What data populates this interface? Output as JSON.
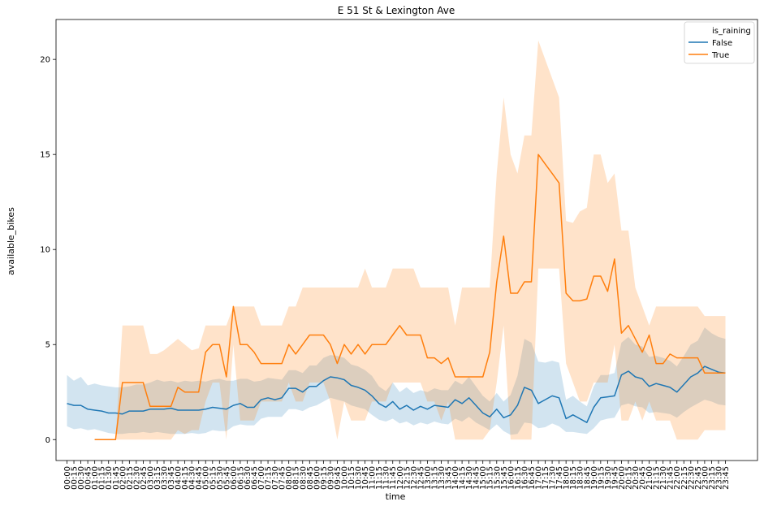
{
  "chart_data": {
    "type": "line",
    "title": "E 51 St & Lexington Ave",
    "xlabel": "time",
    "ylabel": "available_bikes",
    "ylim": [
      -1.1,
      22.1
    ],
    "yticks": [
      0,
      5,
      10,
      15,
      20
    ],
    "legend": {
      "title": "is_raining",
      "placement": "top-right"
    },
    "x": [
      "00:00",
      "00:15",
      "00:30",
      "00:45",
      "01:00",
      "01:15",
      "01:30",
      "01:45",
      "02:00",
      "02:15",
      "02:30",
      "02:45",
      "03:00",
      "03:15",
      "03:30",
      "03:45",
      "04:00",
      "04:15",
      "04:30",
      "04:45",
      "05:00",
      "05:15",
      "05:30",
      "05:45",
      "06:00",
      "06:15",
      "06:30",
      "06:45",
      "07:00",
      "07:15",
      "07:30",
      "07:45",
      "08:00",
      "08:15",
      "08:30",
      "08:45",
      "09:00",
      "09:15",
      "09:30",
      "09:45",
      "10:00",
      "10:15",
      "10:30",
      "10:45",
      "11:00",
      "11:15",
      "11:30",
      "11:45",
      "12:00",
      "12:15",
      "12:30",
      "12:45",
      "13:00",
      "13:15",
      "13:30",
      "13:45",
      "14:00",
      "14:15",
      "14:30",
      "14:45",
      "15:00",
      "15:15",
      "15:30",
      "15:45",
      "16:00",
      "16:15",
      "16:30",
      "16:45",
      "17:00",
      "17:15",
      "17:30",
      "17:45",
      "18:00",
      "18:15",
      "18:30",
      "18:45",
      "19:00",
      "19:15",
      "19:30",
      "19:45",
      "20:00",
      "20:15",
      "20:30",
      "20:45",
      "21:00",
      "21:15",
      "21:30",
      "21:45",
      "22:00",
      "22:15",
      "22:30",
      "22:45",
      "23:00",
      "23:15",
      "23:30",
      "23:45"
    ],
    "series": [
      {
        "name": "False",
        "color": "#1f77b4",
        "band_color": "#1f77b4",
        "values": [
          1.9,
          1.8,
          1.8,
          1.6,
          1.55,
          1.5,
          1.4,
          1.4,
          1.35,
          1.5,
          1.5,
          1.5,
          1.6,
          1.6,
          1.6,
          1.65,
          1.55,
          1.55,
          1.55,
          1.55,
          1.6,
          1.7,
          1.65,
          1.6,
          1.8,
          1.9,
          1.7,
          1.7,
          2.1,
          2.2,
          2.1,
          2.2,
          2.7,
          2.7,
          2.5,
          2.8,
          2.8,
          3.1,
          3.3,
          3.25,
          3.15,
          2.85,
          2.75,
          2.6,
          2.3,
          1.9,
          1.7,
          2.0,
          1.6,
          1.8,
          1.55,
          1.75,
          1.6,
          1.8,
          1.75,
          1.7,
          2.1,
          1.9,
          2.2,
          1.8,
          1.4,
          1.2,
          1.6,
          1.15,
          1.3,
          1.8,
          2.75,
          2.6,
          1.9,
          2.1,
          2.3,
          2.2,
          1.1,
          1.3,
          1.1,
          0.9,
          1.7,
          2.2,
          2.25,
          2.3,
          3.4,
          3.6,
          3.3,
          3.2,
          2.8,
          2.95,
          2.85,
          2.75,
          2.5,
          2.9,
          3.3,
          3.5,
          3.85,
          3.7,
          3.55,
          3.5
        ],
        "lower": [
          0.7,
          0.55,
          0.6,
          0.5,
          0.55,
          0.45,
          0.35,
          0.3,
          0.3,
          0.35,
          0.35,
          0.4,
          0.35,
          0.4,
          0.35,
          0.3,
          0.3,
          0.3,
          0.35,
          0.3,
          0.35,
          0.5,
          0.45,
          0.45,
          0.7,
          0.8,
          0.75,
          0.75,
          1.1,
          1.2,
          1.2,
          1.2,
          1.6,
          1.6,
          1.5,
          1.7,
          1.8,
          2.0,
          2.2,
          2.1,
          2.0,
          1.8,
          1.7,
          1.6,
          1.3,
          1.05,
          0.95,
          1.1,
          0.85,
          0.95,
          0.75,
          0.9,
          0.8,
          0.95,
          0.85,
          0.8,
          1.1,
          0.95,
          1.2,
          0.9,
          0.7,
          0.5,
          0.8,
          0.45,
          0.25,
          0.3,
          0.9,
          0.85,
          0.6,
          0.65,
          0.85,
          0.7,
          0.4,
          0.4,
          0.35,
          0.3,
          0.6,
          1.0,
          1.1,
          1.15,
          1.8,
          1.9,
          1.75,
          1.7,
          1.4,
          1.45,
          1.4,
          1.35,
          1.15,
          1.45,
          1.7,
          1.9,
          2.1,
          2.0,
          1.85,
          1.8
        ],
        "upper": [
          3.4,
          3.1,
          3.3,
          2.85,
          2.95,
          2.85,
          2.8,
          2.75,
          2.75,
          2.8,
          2.9,
          2.9,
          3.0,
          3.15,
          3.05,
          3.1,
          3.0,
          3.1,
          3.05,
          3.1,
          3.05,
          3.15,
          3.2,
          3.1,
          3.1,
          3.2,
          3.2,
          3.05,
          3.1,
          3.25,
          3.2,
          3.15,
          3.65,
          3.65,
          3.5,
          3.9,
          3.9,
          4.3,
          4.45,
          4.4,
          4.3,
          3.95,
          3.85,
          3.65,
          3.35,
          2.8,
          2.55,
          3.0,
          2.5,
          2.75,
          2.45,
          2.6,
          2.5,
          2.7,
          2.6,
          2.6,
          3.1,
          2.9,
          3.3,
          2.8,
          2.3,
          2.0,
          2.45,
          2.0,
          2.35,
          3.35,
          5.3,
          5.1,
          4.1,
          4.05,
          4.15,
          4.05,
          2.1,
          2.3,
          2.0,
          1.75,
          2.8,
          3.4,
          3.4,
          3.5,
          5.1,
          5.4,
          5.0,
          4.9,
          4.35,
          4.4,
          4.3,
          4.15,
          3.85,
          4.4,
          5.0,
          5.2,
          5.9,
          5.6,
          5.4,
          5.3
        ]
      },
      {
        "name": "True",
        "color": "#ff7f0e",
        "band_color": "#ff7f0e",
        "values": [
          null,
          null,
          null,
          null,
          0,
          0,
          0,
          0,
          3,
          3,
          3,
          3,
          1.75,
          1.75,
          1.75,
          1.75,
          2.75,
          2.5,
          2.5,
          2.5,
          4.6,
          5,
          5,
          3.3,
          7,
          5,
          5,
          4.6,
          4,
          4,
          4,
          4,
          5,
          4.5,
          5,
          5.5,
          5.5,
          5.5,
          5,
          4,
          5,
          4.5,
          5,
          4.5,
          5,
          5,
          5,
          5.5,
          6,
          5.5,
          5.5,
          5.5,
          4.3,
          4.3,
          4,
          4.3,
          3.3,
          3.3,
          3.3,
          3.3,
          3.3,
          4.6,
          8.3,
          10.7,
          7.7,
          7.7,
          8.3,
          8.3,
          15,
          14.5,
          14,
          13.5,
          7.7,
          7.3,
          7.3,
          7.4,
          8.6,
          8.6,
          7.8,
          9.5,
          5.6,
          6,
          5.3,
          4.6,
          5.5,
          4,
          4,
          4.5,
          4.3,
          4.3,
          4.3,
          4.3,
          3.5,
          3.5,
          3.5,
          3.5
        ],
        "lower": [
          null,
          null,
          null,
          null,
          0,
          0,
          0,
          0,
          0,
          0,
          0,
          0,
          0,
          0,
          0,
          0,
          0.5,
          0.3,
          0.5,
          0.5,
          2,
          3,
          3,
          0,
          5,
          1,
          1,
          1,
          2,
          2,
          2,
          2,
          3,
          2,
          2,
          3,
          3,
          3,
          2,
          0,
          2,
          1,
          1,
          1,
          2,
          2,
          2,
          3,
          3,
          3,
          3,
          3,
          2,
          2,
          1,
          2,
          0,
          0,
          0,
          0,
          0,
          0.5,
          3,
          6,
          0,
          0,
          0,
          0,
          9,
          9,
          9,
          9,
          4,
          3,
          2,
          2,
          3,
          3,
          3,
          5,
          1,
          1,
          2,
          1,
          2,
          1,
          1,
          1,
          0,
          0,
          0,
          0,
          0.5,
          0.5,
          0.5,
          0.5
        ],
        "upper": [
          null,
          null,
          null,
          null,
          0,
          0,
          0,
          0,
          6,
          6,
          6,
          6,
          4.5,
          4.5,
          4.7,
          5,
          5.3,
          5,
          4.7,
          4.8,
          6,
          6,
          6,
          6,
          7,
          7,
          7,
          7,
          6,
          6,
          6,
          6,
          7,
          7,
          8,
          8,
          8,
          8,
          8,
          8,
          8,
          8,
          8,
          9,
          8,
          8,
          8,
          9,
          9,
          9,
          9,
          8,
          8,
          8,
          8,
          8,
          6,
          8,
          8,
          8,
          8,
          8,
          14,
          18,
          15,
          14,
          16,
          16,
          21,
          20,
          19,
          18,
          11.5,
          11.4,
          12,
          12.2,
          15,
          15,
          13.5,
          14,
          11,
          11,
          8,
          7,
          6,
          7,
          7,
          7,
          7,
          7,
          7,
          7,
          6.5,
          6.5,
          6.5,
          6.5
        ]
      }
    ]
  }
}
